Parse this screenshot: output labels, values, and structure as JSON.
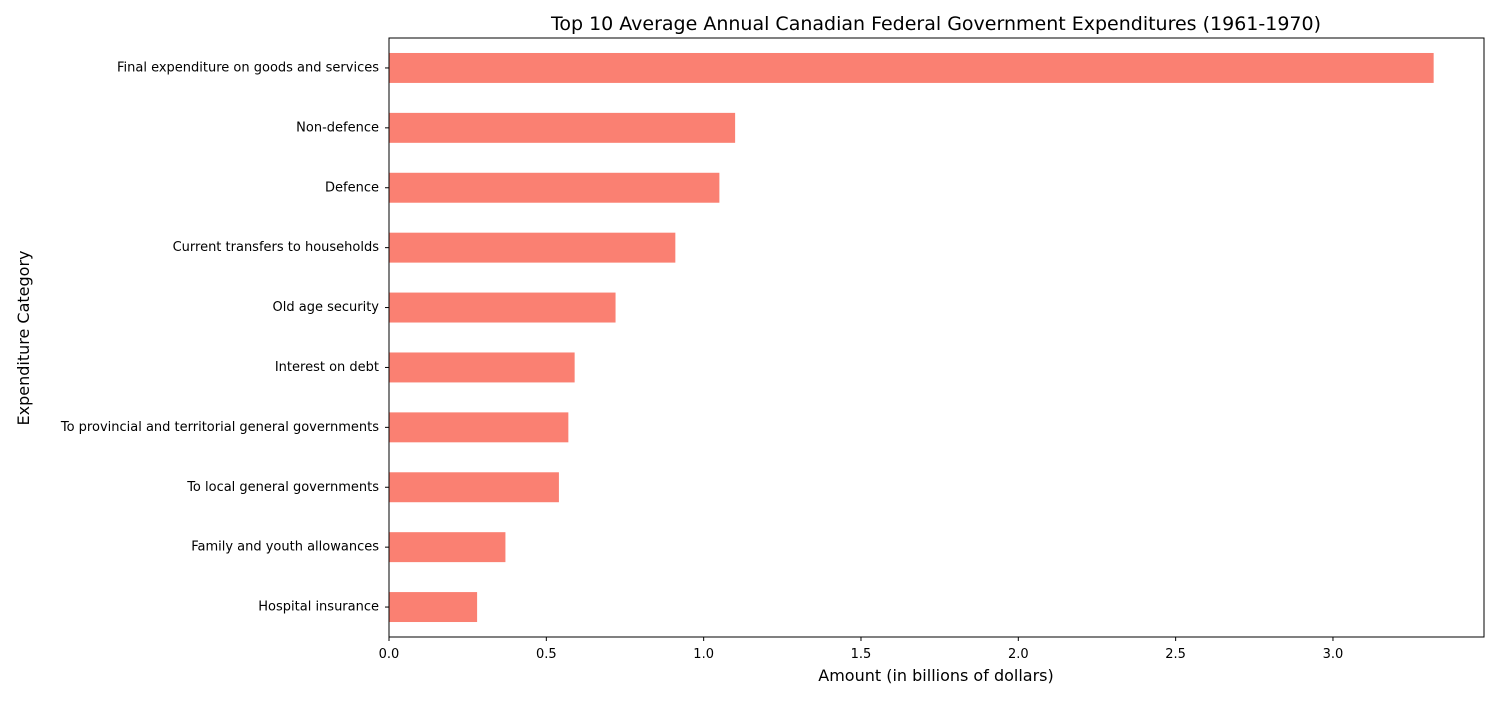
{
  "chart_data": {
    "type": "bar",
    "orientation": "horizontal",
    "title": "Top 10 Average Annual Canadian Federal Government Expenditures (1961-1970)",
    "xlabel": "Amount (in billions of dollars)",
    "ylabel": "Expenditure Category",
    "xlim": [
      0,
      3.48
    ],
    "xticks": [
      0.0,
      0.5,
      1.0,
      1.5,
      2.0,
      2.5,
      3.0
    ],
    "xtick_labels": [
      "0.0",
      "0.5",
      "1.0",
      "1.5",
      "2.0",
      "2.5",
      "3.0"
    ],
    "categories": [
      "Final expenditure on goods and services",
      "Non-defence",
      "Defence",
      "Current transfers to households",
      "Old age security",
      "Interest on debt",
      "To provincial and territorial general governments",
      "To local general governments",
      "Family and youth allowances",
      "Hospital insurance"
    ],
    "values": [
      3.32,
      1.1,
      1.05,
      0.91,
      0.72,
      0.59,
      0.57,
      0.54,
      0.37,
      0.28
    ],
    "bar_color": "#fa8072",
    "grid": false,
    "legend": false
  }
}
